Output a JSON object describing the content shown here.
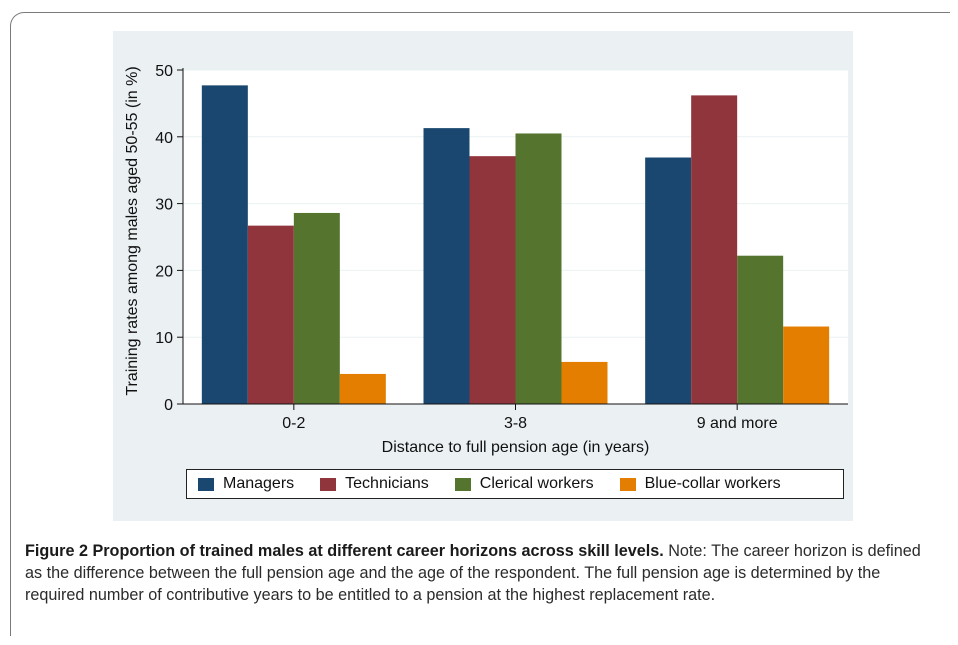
{
  "caption": {
    "title": "Figure 2 Proportion of trained males at different career horizons across skill levels.",
    "note": " Note: The career horizon is defined as the difference between the full pension age and the age of the respondent. The full pension age is determined by the required number of contributive years to be entitled to a pension at the highest replacement rate."
  },
  "chart_data": {
    "type": "bar",
    "title": "",
    "xlabel": "Distance to full pension age (in years)",
    "ylabel": "Training rates among males aged 50-55 (in %)",
    "ylim": [
      0,
      50
    ],
    "yticks": [
      0,
      10,
      20,
      30,
      40,
      50
    ],
    "grid": true,
    "legend_position": "bottom",
    "categories": [
      "0-2",
      "3-8",
      "9 and more"
    ],
    "series": [
      {
        "name": "Managers",
        "color": "#1a476f",
        "values": [
          47.7,
          41.3,
          36.9
        ]
      },
      {
        "name": "Technicians",
        "color": "#90353b",
        "values": [
          26.7,
          37.1,
          46.2
        ]
      },
      {
        "name": "Clerical workers",
        "color": "#55752f",
        "values": [
          28.6,
          40.5,
          22.2
        ]
      },
      {
        "name": "Blue-collar workers",
        "color": "#e37e00",
        "values": [
          4.5,
          6.3,
          11.6
        ]
      }
    ]
  }
}
